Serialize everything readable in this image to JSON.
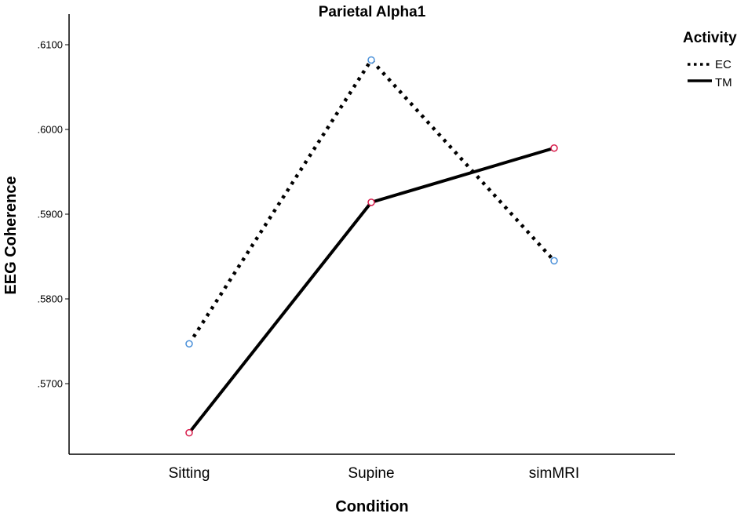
{
  "chart_data": {
    "type": "line",
    "title": "Parietal Alpha1",
    "xlabel": "Condition",
    "ylabel": "EEG Coherence",
    "categories": [
      "Sitting",
      "Supine",
      "simMRI"
    ],
    "yticks": [
      ".5700",
      ".5800",
      ".5900",
      ".6000",
      ".6100"
    ],
    "ylim": [
      0.564,
      0.6115
    ],
    "grid": false,
    "legend": {
      "title": "Activity",
      "placement": "top-right"
    },
    "series": [
      {
        "name": "EC",
        "values": [
          0.5747,
          0.6082,
          0.5845
        ],
        "line_style": "dotted",
        "marker_color": "#4a90d9"
      },
      {
        "name": "TM",
        "values": [
          0.5642,
          0.5914,
          0.5978
        ],
        "line_style": "solid",
        "marker_color": "#d81b4a"
      }
    ]
  }
}
